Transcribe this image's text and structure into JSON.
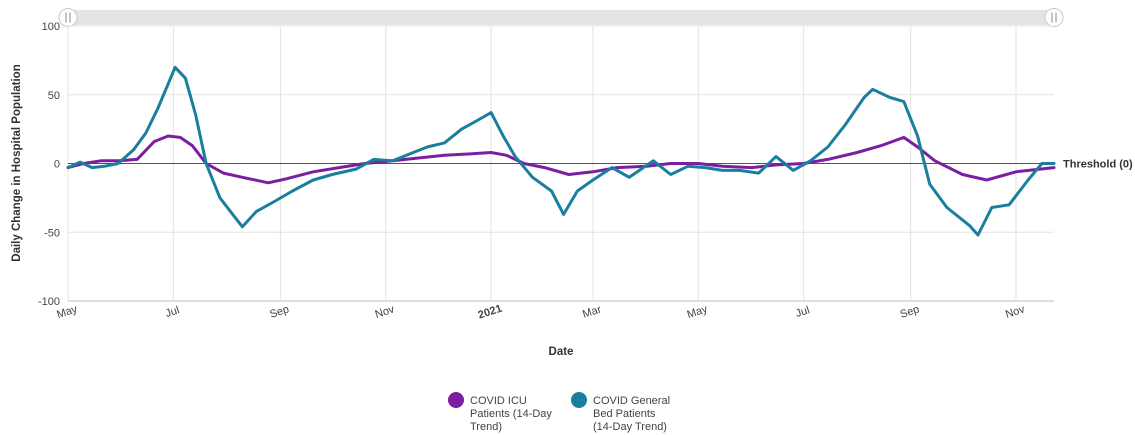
{
  "chart_data": {
    "type": "line",
    "title": "",
    "xlabel": "Date",
    "ylabel": "Daily Change in Hospital Population",
    "ylim": [
      -100,
      100
    ],
    "yticks": [
      -100,
      -50,
      0,
      50,
      100
    ],
    "x_range": [
      "2020-05-01",
      "2021-11-23"
    ],
    "x_ticks": [
      {
        "date": "2020-05-01",
        "label": "May",
        "bold": false
      },
      {
        "date": "2020-07-01",
        "label": "Jul",
        "bold": false
      },
      {
        "date": "2020-09-01",
        "label": "Sep",
        "bold": false
      },
      {
        "date": "2020-11-01",
        "label": "Nov",
        "bold": false
      },
      {
        "date": "2021-01-01",
        "label": "2021",
        "bold": true
      },
      {
        "date": "2021-03-01",
        "label": "Mar",
        "bold": false
      },
      {
        "date": "2021-05-01",
        "label": "May",
        "bold": false
      },
      {
        "date": "2021-07-01",
        "label": "Jul",
        "bold": false
      },
      {
        "date": "2021-09-01",
        "label": "Sep",
        "bold": false
      },
      {
        "date": "2021-11-01",
        "label": "Nov",
        "bold": false
      }
    ],
    "grid": true,
    "threshold": {
      "value": 0,
      "label": "Threshold (0)"
    },
    "legend_position": "bottom",
    "series": [
      {
        "name": "COVID ICU Patients (14-Day Trend)",
        "legend_lines": [
          "COVID ICU",
          "Patients (14-Day",
          "Trend)"
        ],
        "color": "#7b1fa2",
        "points": [
          [
            "2020-05-01",
            -3
          ],
          [
            "2020-05-10",
            0
          ],
          [
            "2020-05-20",
            2
          ],
          [
            "2020-05-30",
            2
          ],
          [
            "2020-06-10",
            3
          ],
          [
            "2020-06-20",
            16
          ],
          [
            "2020-06-28",
            20
          ],
          [
            "2020-07-05",
            19
          ],
          [
            "2020-07-12",
            13
          ],
          [
            "2020-07-20",
            0
          ],
          [
            "2020-07-30",
            -7
          ],
          [
            "2020-08-10",
            -10
          ],
          [
            "2020-08-25",
            -14
          ],
          [
            "2020-09-05",
            -11
          ],
          [
            "2020-09-20",
            -6
          ],
          [
            "2020-10-05",
            -3
          ],
          [
            "2020-10-20",
            0
          ],
          [
            "2020-11-05",
            2
          ],
          [
            "2020-11-20",
            4
          ],
          [
            "2020-12-05",
            6
          ],
          [
            "2020-12-20",
            7
          ],
          [
            "2021-01-01",
            8
          ],
          [
            "2021-01-10",
            6
          ],
          [
            "2021-01-20",
            0
          ],
          [
            "2021-02-01",
            -3
          ],
          [
            "2021-02-15",
            -8
          ],
          [
            "2021-03-01",
            -6
          ],
          [
            "2021-03-15",
            -3
          ],
          [
            "2021-04-01",
            -2
          ],
          [
            "2021-04-15",
            0
          ],
          [
            "2021-05-01",
            0
          ],
          [
            "2021-05-15",
            -2
          ],
          [
            "2021-06-01",
            -3
          ],
          [
            "2021-06-15",
            -1
          ],
          [
            "2021-07-01",
            0
          ],
          [
            "2021-07-15",
            3
          ],
          [
            "2021-08-01",
            8
          ],
          [
            "2021-08-15",
            13
          ],
          [
            "2021-08-28",
            19
          ],
          [
            "2021-09-05",
            12
          ],
          [
            "2021-09-15",
            2
          ],
          [
            "2021-10-01",
            -8
          ],
          [
            "2021-10-15",
            -12
          ],
          [
            "2021-11-01",
            -6
          ],
          [
            "2021-11-23",
            -3
          ]
        ]
      },
      {
        "name": "COVID General Bed Patients (14-Day Trend)",
        "legend_lines": [
          "COVID General",
          "Bed Patients",
          "(14-Day Trend)"
        ],
        "color": "#1a7f9e",
        "points": [
          [
            "2020-05-01",
            -3
          ],
          [
            "2020-05-08",
            1
          ],
          [
            "2020-05-15",
            -3
          ],
          [
            "2020-05-22",
            -2
          ],
          [
            "2020-05-30",
            0
          ],
          [
            "2020-06-08",
            10
          ],
          [
            "2020-06-15",
            22
          ],
          [
            "2020-06-22",
            40
          ],
          [
            "2020-06-28",
            58
          ],
          [
            "2020-07-02",
            70
          ],
          [
            "2020-07-08",
            62
          ],
          [
            "2020-07-14",
            35
          ],
          [
            "2020-07-20",
            0
          ],
          [
            "2020-07-28",
            -25
          ],
          [
            "2020-08-05",
            -38
          ],
          [
            "2020-08-10",
            -46
          ],
          [
            "2020-08-18",
            -35
          ],
          [
            "2020-08-28",
            -28
          ],
          [
            "2020-09-08",
            -20
          ],
          [
            "2020-09-20",
            -12
          ],
          [
            "2020-10-01",
            -8
          ],
          [
            "2020-10-15",
            -4
          ],
          [
            "2020-10-25",
            3
          ],
          [
            "2020-11-05",
            2
          ],
          [
            "2020-11-15",
            7
          ],
          [
            "2020-11-25",
            12
          ],
          [
            "2020-12-05",
            15
          ],
          [
            "2020-12-15",
            25
          ],
          [
            "2020-12-25",
            32
          ],
          [
            "2021-01-01",
            37
          ],
          [
            "2021-01-08",
            20
          ],
          [
            "2021-01-15",
            5
          ],
          [
            "2021-01-25",
            -10
          ],
          [
            "2021-02-05",
            -20
          ],
          [
            "2021-02-12",
            -37
          ],
          [
            "2021-02-20",
            -20
          ],
          [
            "2021-03-01",
            -12
          ],
          [
            "2021-03-12",
            -3
          ],
          [
            "2021-03-22",
            -10
          ],
          [
            "2021-04-05",
            2
          ],
          [
            "2021-04-15",
            -8
          ],
          [
            "2021-04-25",
            -2
          ],
          [
            "2021-05-05",
            -3
          ],
          [
            "2021-05-15",
            -5
          ],
          [
            "2021-05-25",
            -5
          ],
          [
            "2021-06-05",
            -7
          ],
          [
            "2021-06-15",
            5
          ],
          [
            "2021-06-25",
            -5
          ],
          [
            "2021-07-05",
            2
          ],
          [
            "2021-07-15",
            12
          ],
          [
            "2021-07-25",
            28
          ],
          [
            "2021-08-05",
            48
          ],
          [
            "2021-08-10",
            54
          ],
          [
            "2021-08-20",
            48
          ],
          [
            "2021-08-28",
            45
          ],
          [
            "2021-09-05",
            20
          ],
          [
            "2021-09-12",
            -15
          ],
          [
            "2021-09-22",
            -32
          ],
          [
            "2021-10-05",
            -45
          ],
          [
            "2021-10-10",
            -52
          ],
          [
            "2021-10-18",
            -32
          ],
          [
            "2021-10-28",
            -30
          ],
          [
            "2021-11-08",
            -12
          ],
          [
            "2021-11-16",
            0
          ],
          [
            "2021-11-23",
            0
          ]
        ]
      }
    ]
  },
  "scrollbar": {
    "left_handle_icon": "drag-handle-icon",
    "right_handle_icon": "drag-handle-icon"
  }
}
